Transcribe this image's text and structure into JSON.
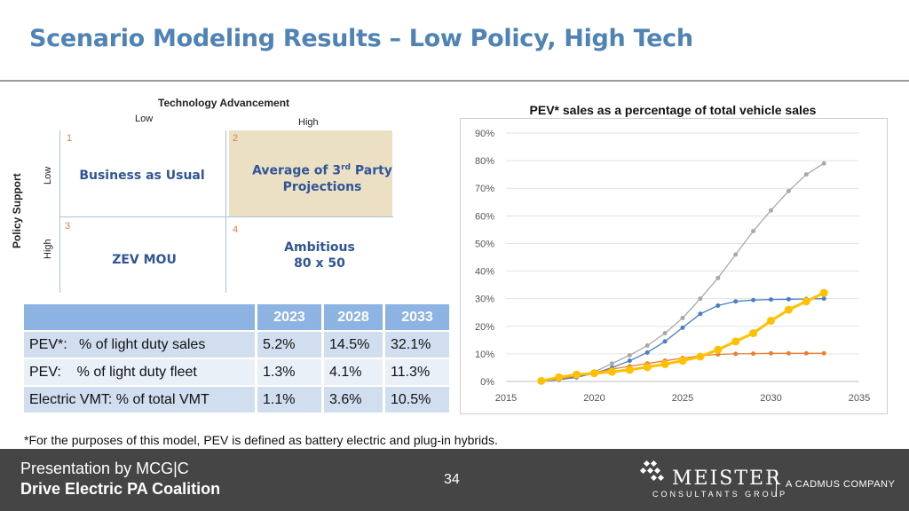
{
  "slide": {
    "title": "Scenario Modeling Results – Low Policy, High Tech",
    "footnote": "*For the purposes of this model, PEV is defined as battery electric and plug-in hybrids."
  },
  "matrix": {
    "x_axis_title": "Technology Advancement",
    "x_low": "Low",
    "x_high": "High",
    "y_axis_title": "Policy Support",
    "y_low": "Low",
    "y_high": "High",
    "quadrants": [
      {
        "num": "1",
        "label": "Business as Usual"
      },
      {
        "num": "2",
        "label_line1": "Average of 3",
        "label_sup": "rd",
        "label_line1_end": " Party",
        "label_line2": "Projections",
        "highlighted": true
      },
      {
        "num": "3",
        "label": "ZEV MOU"
      },
      {
        "num": "4",
        "label_line1": "Ambitious",
        "label_line2": "80 x 50"
      }
    ]
  },
  "table": {
    "headers": [
      "",
      "2023",
      "2028",
      "2033"
    ],
    "rows": [
      [
        "PEV*:   % of light duty sales",
        "5.2%",
        "14.5%",
        "32.1%"
      ],
      [
        "PEV:    % of light duty fleet",
        "1.3%",
        "4.1%",
        "11.3%"
      ],
      [
        "Electric VMT: % of total VMT",
        "1.1%",
        "3.6%",
        "10.5%"
      ]
    ]
  },
  "footer": {
    "presenter": "Presentation by MCG|C",
    "org": "Drive Electric PA Coalition",
    "page_number": "34",
    "logo_name": "MEISTER",
    "logo_sub": "CONSULTANTS GROUP",
    "logo_tag": "A CADMUS COMPANY"
  },
  "chart_data": {
    "type": "line",
    "title": "PEV* sales as a percentage of total vehicle sales",
    "xlim": [
      2015,
      2035
    ],
    "ylim": [
      0,
      90
    ],
    "x_ticks": [
      "2015",
      "2020",
      "2025",
      "2030",
      "2035"
    ],
    "y_ticks": [
      "0%",
      "10%",
      "20%",
      "30%",
      "40%",
      "50%",
      "60%",
      "70%",
      "80%",
      "90%"
    ],
    "grid": "horizontal",
    "series": [
      {
        "color": "#a9a9a9",
        "width": 1.3,
        "marker": 2.5,
        "x": [
          2017,
          2018,
          2019,
          2020,
          2021,
          2022,
          2023,
          2024,
          2025,
          2026,
          2027,
          2028,
          2029,
          2030,
          2031,
          2032,
          2033
        ],
        "y": [
          0.2,
          0.8,
          1.8,
          3.5,
          6.5,
          9.5,
          13,
          17.5,
          23,
          30,
          37.5,
          46,
          54.5,
          62,
          69,
          75,
          79
        ]
      },
      {
        "color": "#4a7fc1",
        "width": 1.3,
        "marker": 2.5,
        "x": [
          2017,
          2018,
          2019,
          2020,
          2021,
          2022,
          2023,
          2024,
          2025,
          2026,
          2027,
          2028,
          2029,
          2030,
          2031,
          2032,
          2033
        ],
        "y": [
          0.1,
          0.6,
          1.5,
          3.0,
          5.0,
          7.5,
          10.5,
          14.5,
          19.5,
          24.5,
          27.5,
          29.0,
          29.5,
          29.7,
          29.8,
          29.9,
          30.0
        ]
      },
      {
        "color": "#ed7d31",
        "width": 1.3,
        "marker": 2.5,
        "x": [
          2017,
          2018,
          2019,
          2020,
          2021,
          2022,
          2023,
          2024,
          2025,
          2026,
          2027,
          2028,
          2029,
          2030,
          2031,
          2032,
          2033
        ],
        "y": [
          0.2,
          0.9,
          2.0,
          3.2,
          4.5,
          5.5,
          6.5,
          7.5,
          8.5,
          9.3,
          9.8,
          10.0,
          10.1,
          10.2,
          10.2,
          10.2,
          10.2
        ]
      },
      {
        "color": "#ffc000",
        "width": 3,
        "marker": 4.5,
        "x": [
          2017,
          2018,
          2019,
          2020,
          2021,
          2022,
          2023,
          2024,
          2025,
          2026,
          2027,
          2028,
          2029,
          2030,
          2031,
          2032,
          2033
        ],
        "y": [
          0.2,
          1.5,
          2.5,
          3.0,
          3.5,
          4.2,
          5.2,
          6.3,
          7.5,
          9.0,
          11.5,
          14.5,
          17.5,
          22.0,
          26.0,
          29.0,
          32.1
        ]
      }
    ]
  }
}
